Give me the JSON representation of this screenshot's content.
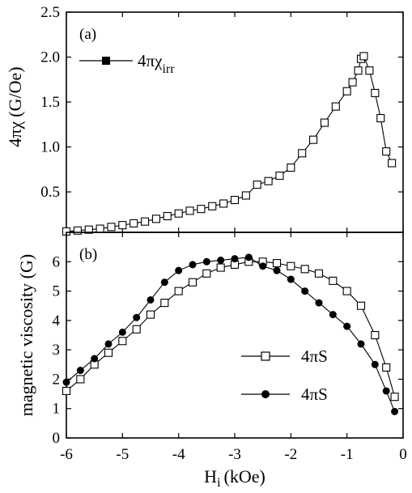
{
  "chart_data": [
    {
      "type": "line",
      "panel_label": "(a)",
      "ylabel_main": "4πχ",
      "ylabel_unit": "(G/Oe)",
      "xlabel_main": "H",
      "xlabel_sub": "i",
      "xlabel_unit": "(kOe)",
      "xlim": [
        -6,
        0
      ],
      "ylim": [
        0.05,
        2.5
      ],
      "yticks": [
        "0.5",
        "1.0",
        "1.5",
        "2.0",
        "2.5"
      ],
      "xticks": [
        "-6",
        "-5",
        "-4",
        "-3",
        "-2",
        "-1",
        "0"
      ],
      "grid": false,
      "legend_position": "top-left",
      "series": [
        {
          "name_main": "4πχ",
          "name_sub": "irr",
          "marker": "square-open",
          "x": [
            -6.0,
            -5.8,
            -5.6,
            -5.4,
            -5.2,
            -5.0,
            -4.8,
            -4.6,
            -4.4,
            -4.2,
            -4.0,
            -3.8,
            -3.6,
            -3.4,
            -3.2,
            -3.0,
            -2.8,
            -2.6,
            -2.4,
            -2.2,
            -2.0,
            -1.8,
            -1.6,
            -1.4,
            -1.2,
            -1.0,
            -0.9,
            -0.8,
            -0.75,
            -0.7,
            -0.6,
            -0.5,
            -0.4,
            -0.3,
            -0.2
          ],
          "y": [
            0.06,
            0.07,
            0.08,
            0.09,
            0.11,
            0.13,
            0.15,
            0.17,
            0.2,
            0.23,
            0.26,
            0.29,
            0.31,
            0.34,
            0.37,
            0.41,
            0.46,
            0.58,
            0.62,
            0.68,
            0.77,
            0.93,
            1.08,
            1.27,
            1.45,
            1.62,
            1.72,
            1.85,
            1.98,
            2.01,
            1.85,
            1.6,
            1.32,
            0.95,
            0.82
          ]
        }
      ]
    },
    {
      "type": "line",
      "panel_label": "(b)",
      "ylabel": "magnetic viscosity (G)",
      "xlabel_main": "H",
      "xlabel_sub": "i",
      "xlabel_unit": "(kOe)",
      "xlim": [
        -6,
        0
      ],
      "ylim": [
        0,
        7
      ],
      "yticks": [
        "0",
        "1",
        "2",
        "3",
        "4",
        "5",
        "6"
      ],
      "xticks": [
        "-6",
        "-5",
        "-4",
        "-3",
        "-2",
        "-1",
        "0"
      ],
      "grid": false,
      "legend_position": "bottom-right",
      "series": [
        {
          "name": "4πS",
          "marker": "square-open",
          "x": [
            -6.0,
            -5.75,
            -5.5,
            -5.25,
            -5.0,
            -4.75,
            -4.5,
            -4.25,
            -4.0,
            -3.75,
            -3.5,
            -3.25,
            -3.0,
            -2.75,
            -2.5,
            -2.25,
            -2.0,
            -1.75,
            -1.5,
            -1.25,
            -1.0,
            -0.75,
            -0.5,
            -0.3,
            -0.15
          ],
          "y": [
            1.6,
            2.0,
            2.5,
            2.9,
            3.3,
            3.7,
            4.2,
            4.6,
            5.0,
            5.3,
            5.6,
            5.8,
            5.9,
            6.0,
            6.0,
            5.95,
            5.85,
            5.75,
            5.6,
            5.35,
            5.0,
            4.5,
            3.5,
            2.4,
            1.4
          ]
        },
        {
          "name": "4πS",
          "marker": "circle-filled",
          "x": [
            -6.0,
            -5.75,
            -5.5,
            -5.25,
            -5.0,
            -4.75,
            -4.5,
            -4.25,
            -4.0,
            -3.75,
            -3.5,
            -3.25,
            -3.0,
            -2.75,
            -2.5,
            -2.25,
            -2.0,
            -1.75,
            -1.5,
            -1.25,
            -1.0,
            -0.75,
            -0.5,
            -0.3,
            -0.15
          ],
          "y": [
            1.9,
            2.3,
            2.7,
            3.2,
            3.6,
            4.1,
            4.7,
            5.3,
            5.7,
            5.9,
            6.0,
            6.05,
            6.1,
            6.15,
            5.85,
            5.7,
            5.4,
            5.0,
            4.6,
            4.2,
            3.8,
            3.2,
            2.5,
            1.6,
            0.9
          ]
        }
      ]
    }
  ]
}
